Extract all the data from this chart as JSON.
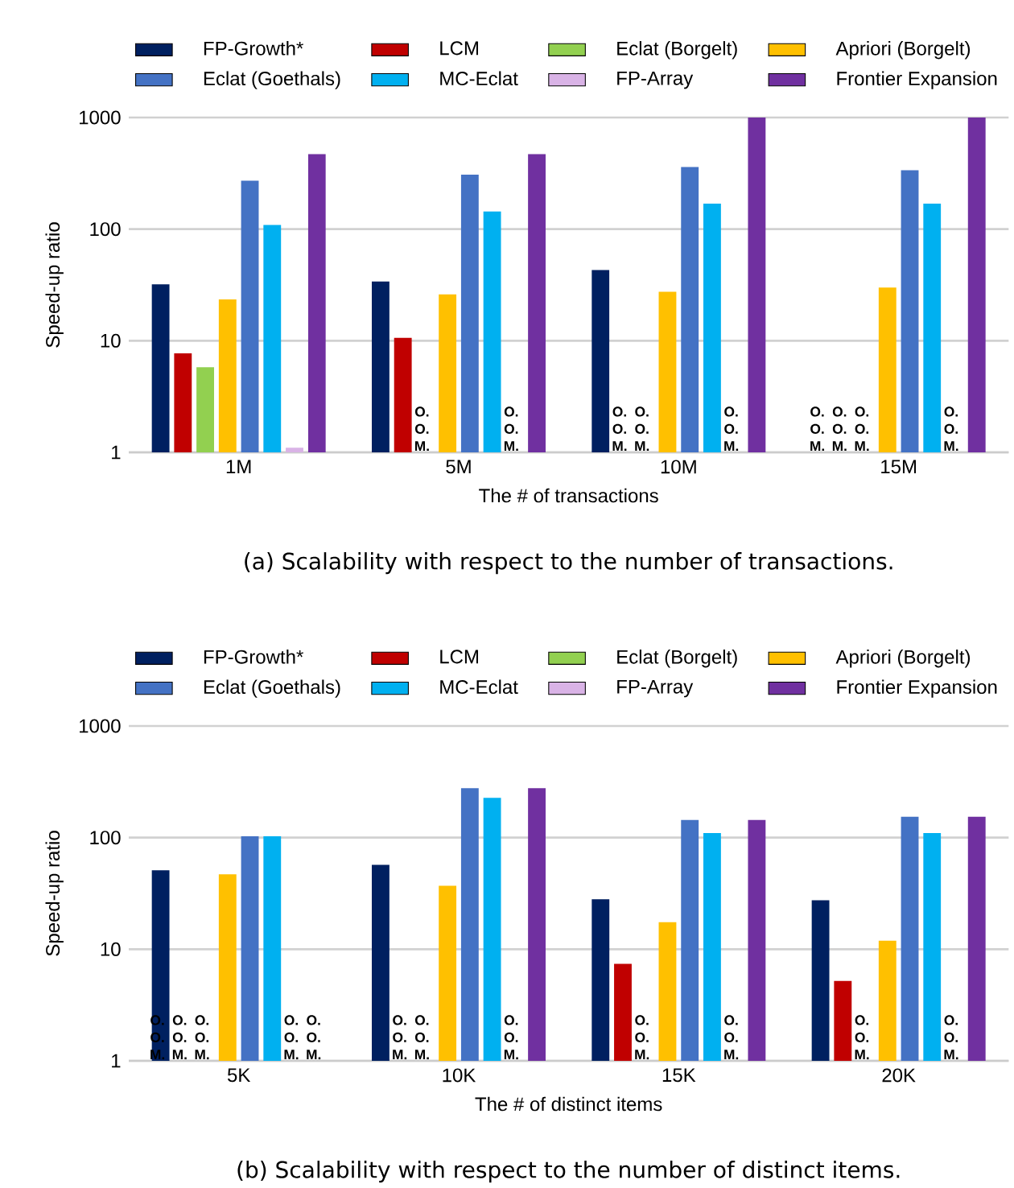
{
  "chart_data": [
    {
      "type": "bar",
      "categories": [
        "1M",
        "5M",
        "10M",
        "15M"
      ],
      "xlabel": "The # of transactions",
      "ylabel": "Speed-up ratio",
      "annotations": [
        "(a) Scalability with respect to the number of transactions."
      ],
      "log": "y",
      "ylim": [
        1,
        1000
      ],
      "yticks": [
        1,
        10,
        100,
        1000
      ],
      "grid": "y",
      "legend": "top",
      "series": [
        {
          "name": "FP-Growth*",
          "color": "#002060",
          "values": [
            32,
            34,
            43,
            null
          ],
          "value_labels": [
            null,
            null,
            null,
            "O. O. M."
          ]
        },
        {
          "name": "LCM",
          "color": "#c00000",
          "values": [
            7.7,
            10.6,
            null,
            null
          ],
          "value_labels": [
            null,
            null,
            "O. O. M.",
            "O. O. M."
          ]
        },
        {
          "name": "Eclat (Borgelt)",
          "color": "#92d050",
          "values": [
            5.8,
            null,
            null,
            null
          ],
          "value_labels": [
            null,
            "O. O. M.",
            "O. O. M.",
            "O. O. M."
          ]
        },
        {
          "name": "Apriori (Borgelt)",
          "color": "#ffc000",
          "values": [
            23.5,
            26,
            27.5,
            30
          ]
        },
        {
          "name": "Eclat (Goethals)",
          "color": "#4472c4",
          "values": [
            272,
            307,
            360,
            337
          ]
        },
        {
          "name": "MC-Eclat",
          "color": "#00b0f0",
          "values": [
            109,
            144,
            169,
            169
          ]
        },
        {
          "name": "FP-Array",
          "color": "#d9b3e6",
          "values": [
            1.1,
            null,
            null,
            null
          ],
          "value_labels": [
            null,
            "O. O. M.",
            "O. O. M.",
            "O. O. M."
          ]
        },
        {
          "name": "Frontier Expansion",
          "color": "#7030a0",
          "values": [
            469,
            469,
            1000,
            1000
          ]
        }
      ]
    },
    {
      "type": "bar",
      "categories": [
        "5K",
        "10K",
        "15K",
        "20K"
      ],
      "xlabel": "The # of distinct items",
      "ylabel": "Speed-up ratio",
      "annotations": [
        "(b) Scalability with respect to the number of distinct items."
      ],
      "log": "y",
      "ylim": [
        1,
        1000
      ],
      "yticks": [
        1,
        10,
        100,
        1000
      ],
      "grid": "y",
      "legend": "top",
      "series": [
        {
          "name": "FP-Growth*",
          "color": "#002060",
          "values": [
            51,
            57,
            28,
            27.5
          ],
          "value_labels": [
            "O. O. M.",
            null,
            null,
            null
          ]
        },
        {
          "name": "LCM",
          "color": "#c00000",
          "values": [
            null,
            null,
            7.4,
            5.2
          ],
          "value_labels": [
            "O. O. M.",
            "O. O. M.",
            null,
            null
          ]
        },
        {
          "name": "Eclat (Borgelt)",
          "color": "#92d050",
          "values": [
            null,
            null,
            null,
            null
          ],
          "value_labels": [
            "O. O. M.",
            "O. O. M.",
            "O. O. M.",
            "O. O. M."
          ]
        },
        {
          "name": "Apriori (Borgelt)",
          "color": "#ffc000",
          "values": [
            47,
            37,
            17.5,
            11.9
          ]
        },
        {
          "name": "Eclat (Goethals)",
          "color": "#4472c4",
          "values": [
            103,
            277,
            144,
            154
          ]
        },
        {
          "name": "MC-Eclat",
          "color": "#00b0f0",
          "values": [
            103,
            227,
            110,
            110
          ]
        },
        {
          "name": "FP-Array",
          "color": "#d9b3e6",
          "values": [
            null,
            null,
            null,
            null
          ],
          "value_labels": [
            "O. O. M.",
            "O. O. M.",
            "O. O. M.",
            "O. O. M."
          ]
        },
        {
          "name": "Frontier Expansion",
          "color": "#7030a0",
          "values": [
            null,
            277,
            144,
            154
          ],
          "value_labels": [
            "O. O. M.",
            null,
            null,
            null
          ]
        }
      ]
    }
  ]
}
